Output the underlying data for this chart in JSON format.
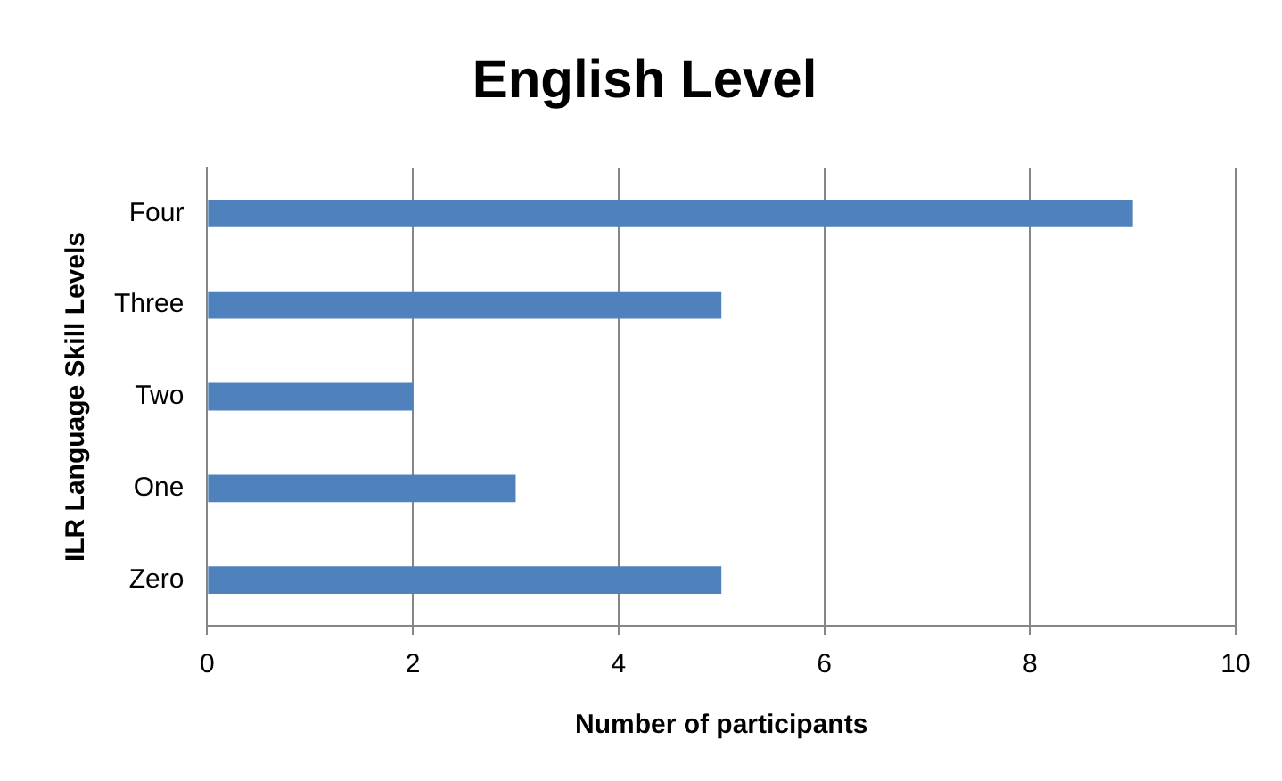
{
  "chart_data": {
    "type": "bar",
    "orientation": "horizontal",
    "title": "English Level",
    "xlabel": "Number of participants",
    "ylabel": "ILR Language Skill Levels",
    "categories": [
      "Four",
      "Three",
      "Two",
      "One",
      "Zero"
    ],
    "values": [
      9,
      5,
      2,
      3,
      5
    ],
    "color": "#4f81bd",
    "xlim": [
      0,
      10
    ],
    "xticks": [
      0,
      2,
      4,
      6,
      8,
      10
    ],
    "grid": "x",
    "legend": false
  }
}
